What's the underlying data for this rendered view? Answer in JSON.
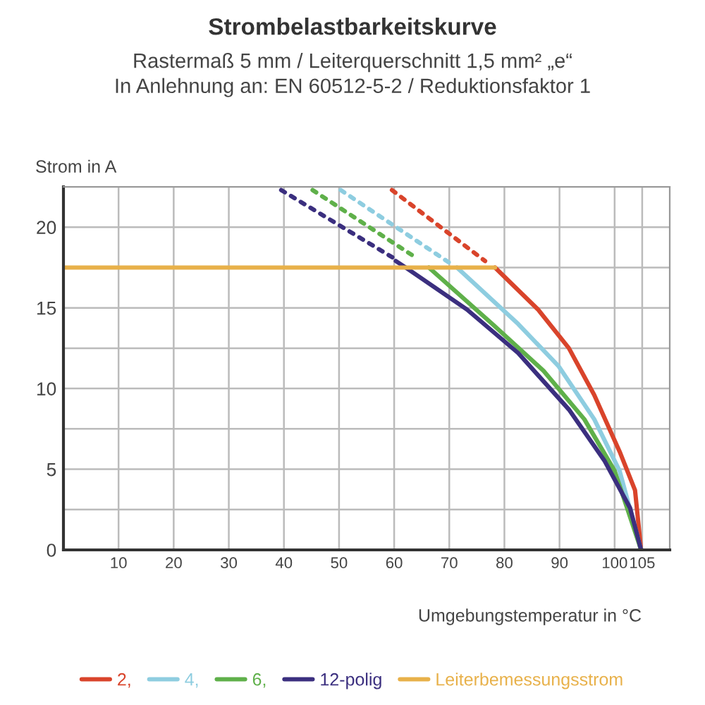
{
  "chart_data": {
    "type": "line",
    "title": "Strombelastbarkeitskurve",
    "subtitle": "Rastermaß 5 mm / Leiterquerschnitt 1,5 mm² „e“\nIn Anlehnung an: EN 60512-5-2 / Reduktionsfaktor 1",
    "ylabel": "Strom in A",
    "xlabel": "Umgebungstemperatur in °C",
    "xlim": [
      0,
      110
    ],
    "ylim": [
      0,
      22.5
    ],
    "xticks": [
      10,
      20,
      30,
      40,
      50,
      60,
      70,
      80,
      90,
      100,
      105
    ],
    "yticks": [
      0,
      {
        "value": 2.5,
        "label": null
      },
      5,
      {
        "value": 7.5,
        "label": null
      },
      10,
      {
        "value": 12.5,
        "label": null
      },
      15,
      {
        "value": 17.5,
        "label": null
      },
      20,
      {
        "value": 22.5,
        "label": null
      }
    ],
    "grid": true,
    "legend": "bottom",
    "marker": "none",
    "series": [
      {
        "name": "2,",
        "color": "#d9442b",
        "x": [
          78.3,
          86.1,
          91.7,
          96.3,
          100.9,
          103.7,
          104.8
        ],
        "values": [
          17.5,
          14.9,
          12.5,
          9.6,
          6.1,
          3.7,
          0
        ]
      },
      {
        "name": "4,",
        "color": "#8ecde0",
        "x": [
          71.4,
          82.5,
          89.8,
          96.3,
          100.9,
          104.8
        ],
        "values": [
          17.5,
          14.0,
          11.4,
          8.1,
          4.9,
          0
        ]
      },
      {
        "name": "6,",
        "color": "#5fb04a",
        "x": [
          66.3,
          77.8,
          87.1,
          94.5,
          100.0,
          104.8
        ],
        "values": [
          17.5,
          14.0,
          11.1,
          8.1,
          4.9,
          0
        ]
      },
      {
        "name": "12-polig",
        "color": "#3b2f7f",
        "x": [
          60.3,
          62.1,
          73.2,
          82.5,
          91.7,
          98.2,
          102.8,
          104.8
        ],
        "values": [
          17.9,
          17.5,
          14.9,
          12.2,
          8.7,
          5.5,
          2.6,
          0
        ]
      },
      {
        "color": "#d9442b",
        "line_style": "dotted",
        "x": [
          59.6,
          76.5
        ],
        "values": [
          22.3,
          17.9
        ]
      },
      {
        "color": "#8ecde0",
        "line_style": "dotted",
        "x": [
          50.3,
          70.0
        ],
        "values": [
          22.3,
          17.8
        ]
      },
      {
        "color": "#5fb04a",
        "line_style": "dotted",
        "x": [
          45.2,
          64.0
        ],
        "values": [
          22.3,
          18.1
        ]
      },
      {
        "color": "#3b2f7f",
        "line_style": "dotted",
        "x": [
          39.5,
          60.3
        ],
        "values": [
          22.3,
          18.0
        ]
      },
      {
        "name": "Leiterbemessungsstrom",
        "color": "#e8b14a",
        "x": [
          0,
          78.3
        ],
        "values": [
          17.5,
          17.5
        ]
      }
    ]
  }
}
